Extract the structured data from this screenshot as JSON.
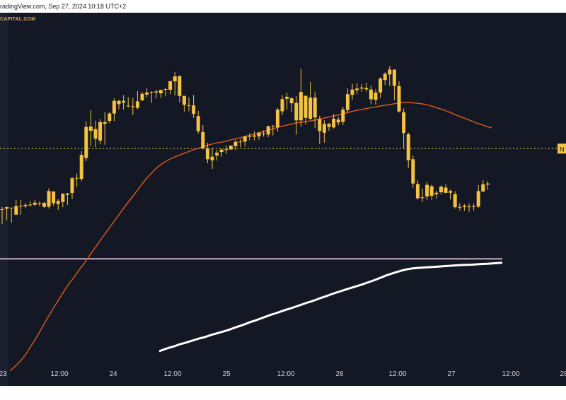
{
  "header": {
    "text": "radingView.com, Sep 27, 2024 10:18 UTC+2"
  },
  "watermark": "CAPITAL.COM",
  "price_tag": "N",
  "colors": {
    "background": "#141824",
    "candle": "#f5c242",
    "ma_short": "#d2561e",
    "ma_long": "#ffffff",
    "support": "#c8a8c0",
    "price_line": "#f5c242"
  },
  "chart_data": {
    "type": "line",
    "title": "",
    "xlabel": "",
    "ylabel": "",
    "x_ticks": [
      "23",
      "12:00",
      "24",
      "12:00",
      "25",
      "12:00",
      "26",
      "12:00",
      "27",
      "12:00",
      "28"
    ],
    "ohlc": [
      [
        346.5,
        336.6,
        345.2,
        345.2
      ],
      [
        346.8,
        338.8,
        345.5,
        346.4
      ],
      [
        345.7,
        337.3,
        346.1,
        345.8
      ],
      [
        350.6,
        342.0,
        347.0,
        342.0
      ],
      [
        350.6,
        342.0,
        347.2,
        347.0
      ],
      [
        349.0,
        345.8,
        347.0,
        347.7
      ],
      [
        349.9,
        346.7,
        347.7,
        347.9
      ],
      [
        350.5,
        347.1,
        347.8,
        349.0
      ],
      [
        349.8,
        347.1,
        348.6,
        348.2
      ],
      [
        349.5,
        346.0,
        348.9,
        346.6
      ],
      [
        357.4,
        345.6,
        346.7,
        355.8
      ],
      [
        355.5,
        347.2,
        355.6,
        348.7
      ],
      [
        351.1,
        344.8,
        348.2,
        350.0
      ],
      [
        354.4,
        346.4,
        349.4,
        354.3
      ],
      [
        354.7,
        347.7,
        353.6,
        354.4
      ],
      [
        364.0,
        351.1,
        354.7,
        363.3
      ],
      [
        366.0,
        358.1,
        363.5,
        363.3
      ],
      [
        379.1,
        361.5,
        362.9,
        376.9
      ],
      [
        396.4,
        373.3,
        375.1,
        393.3
      ],
      [
        403.0,
        382.0,
        393.5,
        391.0
      ],
      [
        396.9,
        381.4,
        392.0,
        386.4
      ],
      [
        397.9,
        383.1,
        385.3,
        396.1
      ],
      [
        402.0,
        382.9,
        395.1,
        396.1
      ],
      [
        402.0,
        395.4,
        396.8,
        401.1
      ],
      [
        410.0,
        396.7,
        401.1,
        408.5
      ],
      [
        409.1,
        403.6,
        408.5,
        406.6
      ],
      [
        411.8,
        403.4,
        407.5,
        408.5
      ],
      [
        410.7,
        404.6,
        405.7,
        405.6
      ],
      [
        410.2,
        400.2,
        404.8,
        405.3
      ],
      [
        414.2,
        403.5,
        404.4,
        408.2
      ],
      [
        413.7,
        408.4,
        408.8,
        412.6
      ],
      [
        415.8,
        410.4,
        412.2,
        413.4
      ],
      [
        414.1,
        407.2,
        413.7,
        413.7
      ],
      [
        414.9,
        410.0,
        414.0,
        413.4
      ],
      [
        415.2,
        410.2,
        412.9,
        414.8
      ],
      [
        415.8,
        411.2,
        415.4,
        415.0
      ],
      [
        420.1,
        412.3,
        415.0,
        420.0
      ],
      [
        425.4,
        411.6,
        419.9,
        422.8
      ],
      [
        423.5,
        407.6,
        422.9,
        411.4
      ],
      [
        411.5,
        402.2,
        411.4,
        406.2
      ],
      [
        410.6,
        402.4,
        406.0,
        405.6
      ],
      [
        411.9,
        398.6,
        405.8,
        400.9
      ],
      [
        402.7,
        389.3,
        399.6,
        390.8
      ],
      [
        394.4,
        380.2,
        390.3,
        380.7
      ],
      [
        383.9,
        372.0,
        380.6,
        374.4
      ],
      [
        381.1,
        368.8,
        373.8,
        375.9
      ],
      [
        379.7,
        373.6,
        376.6,
        378.2
      ],
      [
        380.7,
        375.8,
        378.6,
        380.0
      ],
      [
        382.2,
        377.5,
        380.0,
        380.2
      ],
      [
        382.5,
        379.8,
        380.1,
        382.3
      ],
      [
        385.9,
        379.7,
        382.0,
        384.6
      ],
      [
        386.2,
        381.4,
        384.7,
        384.5
      ],
      [
        387.3,
        382.0,
        384.7,
        387.7
      ],
      [
        389.6,
        385.4,
        387.6,
        387.8
      ],
      [
        390.8,
        385.4,
        387.6,
        388.3
      ],
      [
        390.3,
        385.9,
        387.8,
        389.9
      ],
      [
        391.2,
        387.6,
        389.5,
        389.4
      ],
      [
        394.0,
        387.4,
        388.9,
        393.7
      ],
      [
        394.4,
        388.3,
        393.7,
        393.5
      ],
      [
        404.2,
        390.6,
        393.0,
        403.4
      ],
      [
        411.8,
        400.2,
        402.4,
        409.5
      ],
      [
        413.3,
        403.4,
        409.7,
        410.9
      ],
      [
        410.6,
        402.2,
        410.0,
        407.1
      ],
      [
        411.3,
        388.8,
        407.3,
        397.1
      ],
      [
        427.3,
        393.4,
        397.1,
        413.7
      ],
      [
        411.5,
        394.7,
        411.5,
        398.6
      ],
      [
        419.5,
        397.4,
        398.0,
        410.4
      ],
      [
        413.9,
        392.6,
        410.4,
        398.8
      ],
      [
        399.8,
        383.3,
        397.9,
        390.9
      ],
      [
        397.2,
        384.1,
        389.9,
        395.0
      ],
      [
        395.7,
        391.0,
        395.0,
        393.3
      ],
      [
        400.8,
        392.3,
        393.0,
        398.1
      ],
      [
        399.1,
        394.2,
        397.6,
        395.9
      ],
      [
        405.0,
        394.4,
        396.2,
        403.4
      ],
      [
        415.8,
        401.7,
        403.2,
        412.4
      ],
      [
        418.4,
        409.1,
        412.0,
        415.1
      ],
      [
        418.9,
        412.4,
        414.8,
        415.7
      ],
      [
        418.3,
        413.7,
        415.7,
        416.3
      ],
      [
        419.0,
        414.0,
        416.0,
        415.2
      ],
      [
        417.5,
        406.5,
        415.1,
        409.4
      ],
      [
        415.3,
        406.3,
        409.1,
        413.3
      ],
      [
        422.3,
        410.1,
        413.4,
        421.5
      ],
      [
        425.2,
        417.7,
        420.7,
        424.3
      ],
      [
        428.8,
        417.2,
        423.9,
        426.8
      ],
      [
        425.6,
        408.7,
        426.8,
        417.3
      ],
      [
        420.0,
        401.6,
        417.1,
        402.3
      ],
      [
        404.0,
        380.4,
        401.8,
        389.7
      ],
      [
        390.0,
        369.3,
        389.0,
        373.8
      ],
      [
        376.4,
        357.7,
        374.4,
        360.2
      ],
      [
        362.1,
        350.8,
        359.9,
        351.6
      ],
      [
        357.3,
        349.4,
        352.1,
        351.9
      ],
      [
        361.2,
        350.5,
        352.6,
        359.4
      ],
      [
        359.5,
        350.5,
        358.6,
        353.0
      ],
      [
        356.0,
        351.5,
        353.9,
        354.8
      ],
      [
        359.0,
        353.7,
        355.1,
        358.4
      ],
      [
        359.9,
        354.7,
        357.8,
        354.7
      ],
      [
        356.8,
        350.8,
        355.8,
        354.8
      ],
      [
        355.7,
        345.6,
        354.0,
        346.4
      ],
      [
        348.7,
        344.6,
        346.1,
        346.5
      ],
      [
        348.2,
        344.3,
        347.2,
        346.5
      ],
      [
        348.5,
        343.7,
        346.4,
        346.8
      ],
      [
        348.6,
        344.5,
        346.9,
        347.0
      ],
      [
        359.3,
        346.1,
        346.7,
        355.8
      ],
      [
        362.3,
        355.1,
        355.6,
        359.8
      ],
      [
        361.6,
        356.5,
        359.6,
        360.2
      ]
    ],
    "series": [
      {
        "values": [
          250.7,
          253.5,
          256.5,
          260.5,
          265.3,
          270.2,
          275.5,
          281.1,
          286.3,
          291.3,
          296.2,
          301.0,
          304.9,
          309.4,
          313.4,
          317.9,
          322.2,
          326.6,
          330.9,
          335.2,
          339.5,
          343.8,
          347.9,
          351.8,
          356.0,
          360.1,
          363.9,
          367.1,
          370.1,
          372.3,
          374.1,
          375.5,
          376.8,
          378.0,
          379.1,
          380.2,
          381.2,
          382.2,
          383.1,
          383.9,
          384.4,
          385.1,
          385.9,
          386.6,
          387.4,
          388.2,
          389.0,
          389.8,
          390.7,
          391.5,
          392.4,
          393.4,
          394.1,
          394.8,
          395.6,
          396.0,
          396.4,
          396.9,
          397.5,
          398.2,
          398.9,
          399.6,
          400.2,
          401.0,
          401.8,
          402.6,
          403.2,
          403.8,
          404.4,
          404.9,
          405.5,
          406.0,
          406.5,
          407.0,
          407.4,
          407.5,
          407.4,
          407.1,
          406.7,
          406.0,
          405.1,
          404.1,
          403.1,
          401.9,
          400.6,
          399.3,
          398.2,
          397.0,
          395.7,
          394.7,
          393.6,
          392.7
        ]
      },
      {
        "values": [
          262.2,
          263.3,
          264.3,
          265.1,
          266.2,
          267.0,
          267.9,
          268.8,
          269.7,
          270.4,
          271.4,
          272.3,
          273.1,
          274.0,
          274.9,
          276.0,
          277.0,
          278.0,
          279.2,
          280.1,
          281.2,
          282.3,
          283.4,
          284.3,
          285.3,
          286.3,
          287.2,
          288.2,
          289.2,
          290.3,
          291.2,
          292.2,
          293.3,
          294.3,
          295.4,
          296.4,
          297.3,
          298.3,
          299.2,
          300.1,
          301.0,
          302.0,
          303.1,
          304.1,
          305.3,
          306.5,
          307.5,
          308.4,
          309.3,
          310.0,
          310.5,
          310.8,
          311.0,
          311.2,
          311.4,
          311.6,
          311.8,
          312.0,
          312.2,
          312.4,
          312.6,
          312.7,
          312.8,
          313.0,
          313.2,
          313.3,
          313.5,
          313.7,
          313.9
        ]
      }
    ],
    "lines": [
      {
        "value": 380.6
      },
      {
        "value": 316.2
      },
      {
        "value": 431.1
      },
      {
        "value": 404.0
      }
    ],
    "ylim": [
      249.4,
      460.0
    ],
    "grid": false,
    "legend": "none"
  }
}
